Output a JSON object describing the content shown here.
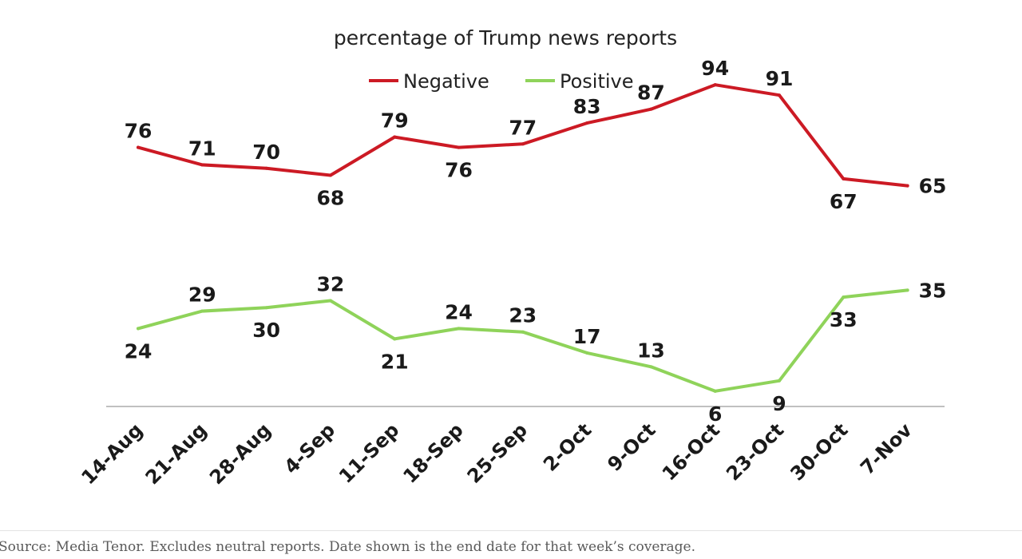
{
  "chart_data": {
    "type": "line",
    "title": "percentage of Trump news reports",
    "xlabel": "",
    "ylabel": "",
    "ylim": [
      0,
      100
    ],
    "grid": false,
    "legend_position": "top-center",
    "categories": [
      "14-Aug",
      "21-Aug",
      "28-Aug",
      "4-Sep",
      "11-Sep",
      "18-Sep",
      "25-Sep",
      "2-Oct",
      "9-Oct",
      "16-Oct",
      "23-Oct",
      "30-Oct",
      "7-Nov"
    ],
    "series": [
      {
        "name": "Negative",
        "color": "#cc1a24",
        "values": [
          76,
          71,
          70,
          68,
          79,
          76,
          77,
          83,
          87,
          94,
          91,
          67,
          65
        ],
        "label_positions": [
          "above",
          "above",
          "above",
          "below",
          "above",
          "below",
          "above",
          "above",
          "above",
          "above",
          "above",
          "below",
          "right"
        ]
      },
      {
        "name": "Positive",
        "color": "#8fd35a",
        "values": [
          24,
          29,
          30,
          32,
          21,
          24,
          23,
          17,
          13,
          6,
          9,
          33,
          35
        ],
        "label_positions": [
          "below",
          "above",
          "below",
          "above",
          "below",
          "above",
          "above",
          "above",
          "above",
          "below",
          "below",
          "below",
          "right"
        ]
      }
    ]
  },
  "footer": {
    "source": "Source: Media Tenor. Excludes neutral reports. Date shown is the end date for that week’s coverage."
  }
}
